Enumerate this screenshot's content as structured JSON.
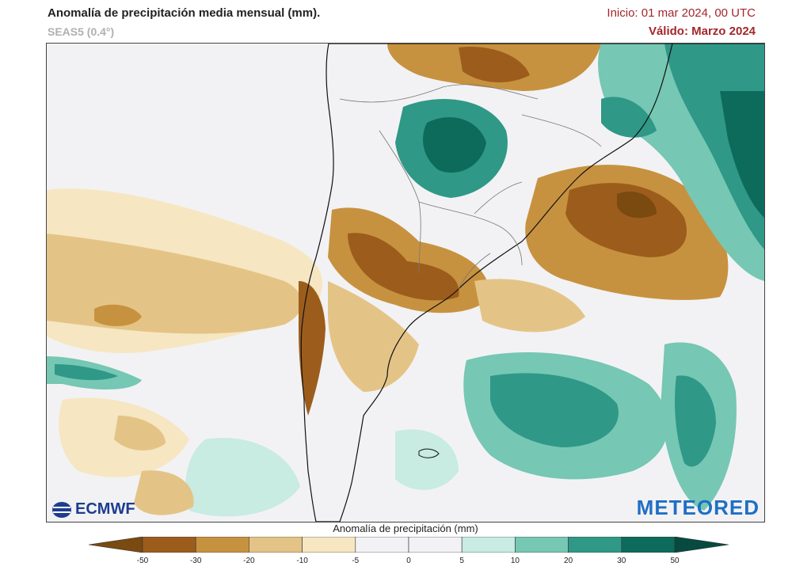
{
  "header": {
    "title": "Anomalía de precipitación media mensual (mm).",
    "subtitle": "SEAS5 (0.4°)",
    "start": "Inicio: 01 mar 2024, 00 UTC",
    "valid": "Válido: Marzo 2024"
  },
  "logos": {
    "left": "ECMWF",
    "right": "METEORED"
  },
  "legend": {
    "title": "Anomalía de precipitación (mm)",
    "ticks": [
      "-50",
      "-30",
      "-20",
      "-10",
      "-5",
      "0",
      "5",
      "10",
      "20",
      "30",
      "50"
    ],
    "colors": [
      "#7a4a10",
      "#9c5d1c",
      "#c7923f",
      "#e4c486",
      "#f6e6c2",
      "#f2f2f4",
      "#f2f2f4",
      "#c8ebe2",
      "#76c7b4",
      "#2f9887",
      "#0d6b5c",
      "#064a40"
    ]
  },
  "colors": {
    "ocean_neutral": "#f2f2f4",
    "land_relief": "#e8e6e0",
    "borders": "#777777",
    "coast": "#111111"
  }
}
